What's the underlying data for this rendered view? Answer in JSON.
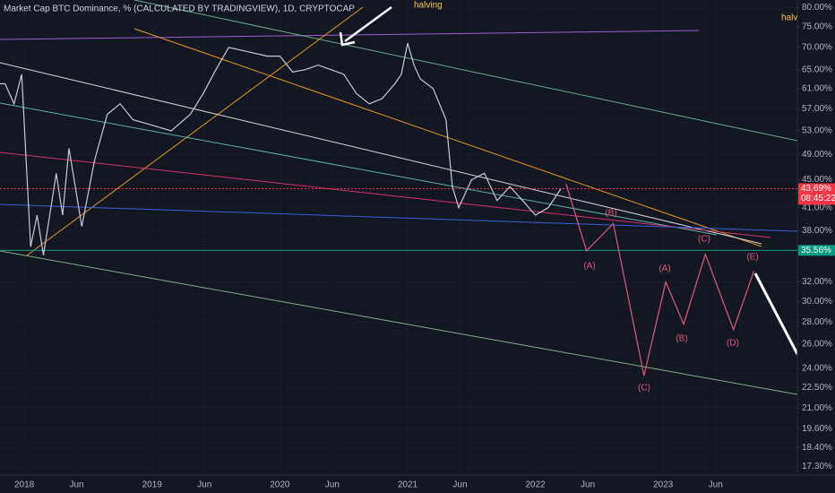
{
  "chart_data": {
    "type": "line",
    "title": "Market Cap BTC Dominance, % (CALCULATED BY TRADINGVIEW), 1D, CRYPTOCAP",
    "log_scale": true,
    "grid": true,
    "xlim": [
      2017.81,
      2024.05
    ],
    "ylim": [
      16.8,
      82
    ],
    "xticks": [
      {
        "value": 2018,
        "label": "2018"
      },
      {
        "value": 2018.41,
        "label": "Jun"
      },
      {
        "value": 2019,
        "label": "2019"
      },
      {
        "value": 2019.41,
        "label": "Jun"
      },
      {
        "value": 2020,
        "label": "2020"
      },
      {
        "value": 2020.41,
        "label": "Jun"
      },
      {
        "value": 2021,
        "label": "2021"
      },
      {
        "value": 2021.41,
        "label": "Jun"
      },
      {
        "value": 2022,
        "label": "2022"
      },
      {
        "value": 2022.41,
        "label": "Jun"
      },
      {
        "value": 2023,
        "label": "2023"
      },
      {
        "value": 2023.41,
        "label": "Jun"
      }
    ],
    "yticks": [
      {
        "value": 80,
        "label": "80.00%"
      },
      {
        "value": 75,
        "label": "75.00%"
      },
      {
        "value": 70,
        "label": "70.00%"
      },
      {
        "value": 65,
        "label": "65.00%"
      },
      {
        "value": 61,
        "label": "61.00%"
      },
      {
        "value": 57,
        "label": "57.00%"
      },
      {
        "value": 53,
        "label": "53.00%"
      },
      {
        "value": 49,
        "label": "49.00%"
      },
      {
        "value": 45,
        "label": "45.00%"
      },
      {
        "value": 41,
        "label": "41.00%"
      },
      {
        "value": 38,
        "label": "38.00%"
      },
      {
        "value": 32,
        "label": "32.00%"
      },
      {
        "value": 30,
        "label": "30.00%"
      },
      {
        "value": 28,
        "label": "28.00%"
      },
      {
        "value": 26,
        "label": "26.00%"
      },
      {
        "value": 24,
        "label": "24.00%"
      },
      {
        "value": 22.5,
        "label": "22.50%"
      },
      {
        "value": 21,
        "label": "21.00%"
      },
      {
        "value": 19.6,
        "label": "19.60%"
      },
      {
        "value": 18.4,
        "label": "18.40%"
      },
      {
        "value": 17.3,
        "label": "17.30%"
      }
    ],
    "series": [
      {
        "color": "#c8cbd4",
        "x": [
          2017.81,
          2017.85,
          2017.92,
          2017.98,
          2018.05,
          2018.1,
          2018.15,
          2018.25,
          2018.3,
          2018.35,
          2018.45,
          2018.55,
          2018.65,
          2018.75,
          2018.85,
          2019.0,
          2019.15,
          2019.3,
          2019.4,
          2019.5,
          2019.6,
          2019.75,
          2019.9,
          2020.0,
          2020.1,
          2020.2,
          2020.3,
          2020.4,
          2020.5,
          2020.6,
          2020.7,
          2020.8,
          2020.9,
          2020.95,
          2021.0,
          2021.05,
          2021.1,
          2021.2,
          2021.3,
          2021.35,
          2021.4,
          2021.5,
          2021.6,
          2021.7,
          2021.8,
          2021.9,
          2022.0,
          2022.1,
          2022.2
        ],
        "values": [
          62,
          62,
          58,
          64,
          36,
          40,
          35,
          46,
          40,
          50,
          38.5,
          48,
          56,
          58,
          55,
          54,
          53,
          56,
          60,
          65,
          70,
          69,
          68,
          68,
          64.5,
          65,
          66,
          65,
          64,
          60,
          58,
          59,
          62,
          64,
          71,
          66,
          63,
          61,
          55,
          44,
          41,
          45,
          46,
          42,
          44,
          42,
          40,
          41,
          43.69
        ]
      },
      {
        "color": "#e05a7a",
        "x": [
          2022.24,
          2022.4,
          2022.61,
          2022.85,
          2023.02,
          2023.16,
          2023.33,
          2023.55,
          2023.71
        ],
        "values": [
          44.4,
          35.5,
          38.9,
          23.4,
          32,
          27.8,
          35.1,
          27.3,
          33.2
        ]
      }
    ],
    "annotations": [
      "halving",
      "halving",
      "(A)",
      "(B)",
      "(C)",
      "(A)",
      "(B)",
      "(C)",
      "(D)",
      "(E)"
    ],
    "price_lines": [
      {
        "value": 43.69,
        "label": "43.69%",
        "color": "#f23645",
        "countdown": "08:45:22"
      },
      {
        "value": 35.56,
        "label": "35.56%",
        "color": "#089981"
      }
    ]
  }
}
